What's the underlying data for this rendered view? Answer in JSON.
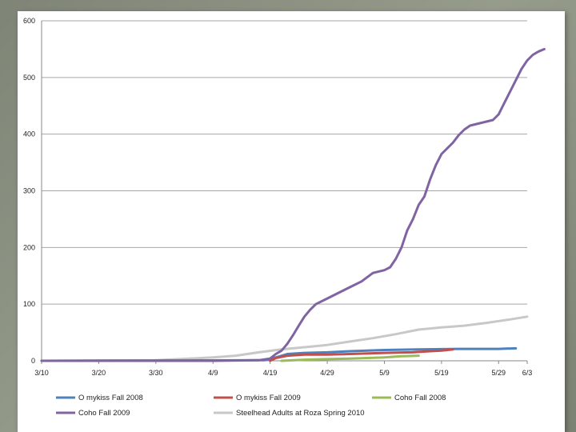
{
  "chart_data": {
    "type": "line",
    "title": "",
    "xlabel": "",
    "ylabel": "",
    "ylim": [
      0,
      600
    ],
    "yticks": [
      0,
      100,
      200,
      300,
      400,
      500,
      600
    ],
    "ytick_labels": [
      "0",
      "100",
      "200",
      "300",
      "400",
      "500",
      "600"
    ],
    "xlim": [
      "3/10",
      "6/3"
    ],
    "xticks": [
      "3/10",
      "3/20",
      "3/30",
      "4/9",
      "4/19",
      "4/29",
      "5/9",
      "5/19",
      "5/29",
      "6/3"
    ],
    "grid": "horizontal",
    "legend_position": "bottom",
    "series": [
      {
        "name": "O mykiss Fall 2008",
        "color": "#4f81bd",
        "points": [
          [
            "3/10",
            0
          ],
          [
            "4/18",
            1
          ],
          [
            "4/20",
            6
          ],
          [
            "4/22",
            12
          ],
          [
            "4/25",
            14
          ],
          [
            "4/29",
            15
          ],
          [
            "5/3",
            17
          ],
          [
            "5/9",
            19
          ],
          [
            "5/15",
            20
          ],
          [
            "5/22",
            21
          ],
          [
            "5/29",
            21
          ],
          [
            "6/1",
            22
          ]
        ]
      },
      {
        "name": "O mykiss Fall 2009",
        "color": "#c0504d",
        "points": [
          [
            "4/19",
            0
          ],
          [
            "4/20",
            5
          ],
          [
            "4/22",
            9
          ],
          [
            "4/25",
            11
          ],
          [
            "4/29",
            11
          ],
          [
            "5/3",
            12
          ],
          [
            "5/9",
            14
          ],
          [
            "5/14",
            15
          ],
          [
            "5/17",
            17
          ],
          [
            "5/19",
            18
          ],
          [
            "5/21",
            20
          ]
        ]
      },
      {
        "name": "Coho Fall 2008",
        "color": "#9bbb59",
        "points": [
          [
            "4/21",
            0
          ],
          [
            "4/25",
            2
          ],
          [
            "4/29",
            3
          ],
          [
            "5/3",
            4
          ],
          [
            "5/9",
            6
          ],
          [
            "5/12",
            8
          ],
          [
            "5/15",
            9
          ]
        ]
      },
      {
        "name": "Coho Fall 2009",
        "color": "#8064a2",
        "points": [
          [
            "3/10",
            0
          ],
          [
            "4/9",
            0
          ],
          [
            "4/17",
            1
          ],
          [
            "4/19",
            4
          ],
          [
            "4/20",
            12
          ],
          [
            "4/21",
            18
          ],
          [
            "4/22",
            30
          ],
          [
            "4/23",
            45
          ],
          [
            "4/24",
            62
          ],
          [
            "4/25",
            78
          ],
          [
            "4/26",
            90
          ],
          [
            "4/27",
            100
          ],
          [
            "4/29",
            110
          ],
          [
            "5/1",
            120
          ],
          [
            "5/3",
            130
          ],
          [
            "5/5",
            140
          ],
          [
            "5/7",
            155
          ],
          [
            "5/9",
            160
          ],
          [
            "5/10",
            165
          ],
          [
            "5/11",
            180
          ],
          [
            "5/12",
            200
          ],
          [
            "5/13",
            230
          ],
          [
            "5/14",
            250
          ],
          [
            "5/15",
            275
          ],
          [
            "5/16",
            290
          ],
          [
            "5/17",
            320
          ],
          [
            "5/18",
            345
          ],
          [
            "5/19",
            365
          ],
          [
            "5/20",
            375
          ],
          [
            "5/21",
            385
          ],
          [
            "5/22",
            398
          ],
          [
            "5/23",
            408
          ],
          [
            "5/24",
            415
          ],
          [
            "5/26",
            420
          ],
          [
            "5/28",
            425
          ],
          [
            "5/29",
            435
          ],
          [
            "5/30",
            455
          ],
          [
            "5/31",
            475
          ],
          [
            "6/1",
            495
          ],
          [
            "6/2",
            515
          ],
          [
            "6/3",
            530
          ],
          [
            "6/4",
            540
          ],
          [
            "6/5",
            546
          ],
          [
            "6/6",
            550
          ]
        ]
      },
      {
        "name": "Steelhead Adults at Roza Spring 2010",
        "color": "#c8c8c8",
        "points": [
          [
            "3/10",
            0
          ],
          [
            "3/30",
            1
          ],
          [
            "4/9",
            6
          ],
          [
            "4/13",
            9
          ],
          [
            "4/17",
            15
          ],
          [
            "4/21",
            20
          ],
          [
            "4/25",
            24
          ],
          [
            "4/29",
            28
          ],
          [
            "5/3",
            34
          ],
          [
            "5/7",
            40
          ],
          [
            "5/11",
            47
          ],
          [
            "5/15",
            55
          ],
          [
            "5/19",
            59
          ],
          [
            "5/23",
            62
          ],
          [
            "5/27",
            67
          ],
          [
            "5/31",
            73
          ],
          [
            "6/3",
            78
          ]
        ]
      }
    ]
  }
}
